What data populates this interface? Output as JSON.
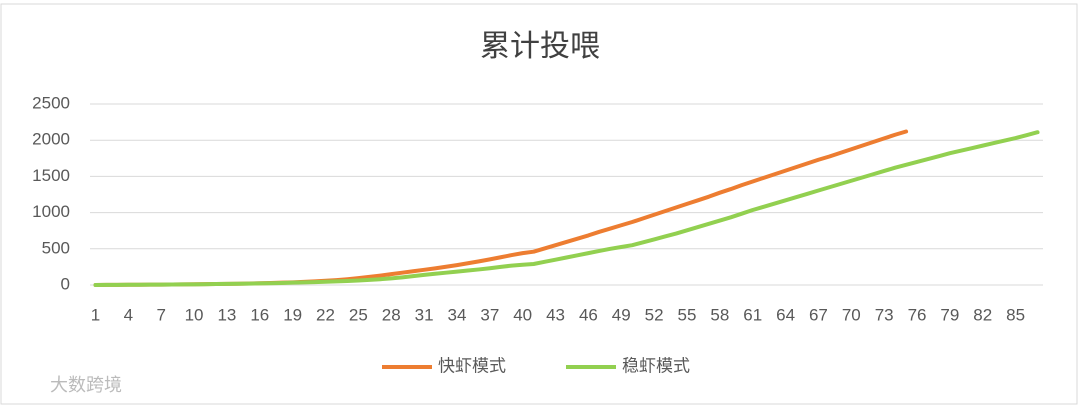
{
  "chart_data": {
    "type": "line",
    "title": "累计投喂",
    "categories": [
      1,
      null,
      null,
      4,
      null,
      null,
      7,
      null,
      null,
      10,
      null,
      null,
      13,
      null,
      null,
      16,
      null,
      null,
      19,
      null,
      null,
      22,
      null,
      null,
      25,
      null,
      null,
      28,
      null,
      null,
      31,
      null,
      null,
      34,
      null,
      null,
      37,
      null,
      null,
      40,
      null,
      null,
      43,
      null,
      null,
      46,
      null,
      null,
      49,
      null,
      null,
      52,
      null,
      null,
      55,
      null,
      null,
      58,
      null,
      null,
      61,
      null,
      null,
      64,
      null,
      null,
      67,
      null,
      null,
      70,
      null,
      null,
      73,
      null,
      null,
      76,
      null,
      null,
      79,
      null,
      null,
      82,
      null,
      null,
      85,
      null,
      null
    ],
    "series": [
      {
        "name": "快虾模式",
        "color": "#ed7d31",
        "values": [
          0,
          1,
          2,
          3,
          4,
          5,
          6,
          7,
          8,
          10,
          12,
          14,
          16,
          18,
          21,
          24,
          28,
          32,
          37,
          43,
          50,
          58,
          68,
          80,
          95,
          112,
          130,
          150,
          170,
          190,
          210,
          230,
          252,
          275,
          300,
          326,
          354,
          383,
          413,
          440,
          460,
          505,
          550,
          595,
          640,
          685,
          735,
          780,
          825,
          870,
          920,
          970,
          1020,
          1070,
          1120,
          1170,
          1220,
          1275,
          1325,
          1380,
          1430,
          1480,
          1530,
          1580,
          1630,
          1680,
          1730,
          1775,
          1825,
          1875,
          1925,
          1975,
          2025,
          2075,
          2120,
          null,
          null,
          null,
          null,
          null,
          null,
          null,
          null,
          null,
          null,
          null,
          null
        ]
      },
      {
        "name": "稳虾模式",
        "color": "#92d050",
        "values": [
          0,
          1,
          2,
          3,
          4,
          5,
          6,
          7,
          8,
          9,
          11,
          13,
          15,
          17,
          19,
          22,
          25,
          28,
          32,
          36,
          40,
          45,
          50,
          56,
          62,
          70,
          80,
          92,
          106,
          122,
          140,
          155,
          170,
          185,
          200,
          215,
          232,
          250,
          268,
          280,
          290,
          320,
          350,
          380,
          410,
          440,
          470,
          500,
          525,
          550,
          590,
          630,
          670,
          710,
          755,
          800,
          845,
          890,
          935,
          985,
          1036,
          1080,
          1125,
          1170,
          1215,
          1260,
          1305,
          1350,
          1395,
          1440,
          1485,
          1530,
          1575,
          1620,
          1660,
          1700,
          1740,
          1780,
          1820,
          1855,
          1890,
          1925,
          1960,
          1995,
          2030,
          2070,
          2110
        ]
      }
    ],
    "ylim": [
      0,
      2500
    ],
    "yticks": [
      0,
      500,
      1000,
      1500,
      2000,
      2500
    ],
    "grid": true,
    "legend": "bottom",
    "watermark": "大数跨境"
  }
}
